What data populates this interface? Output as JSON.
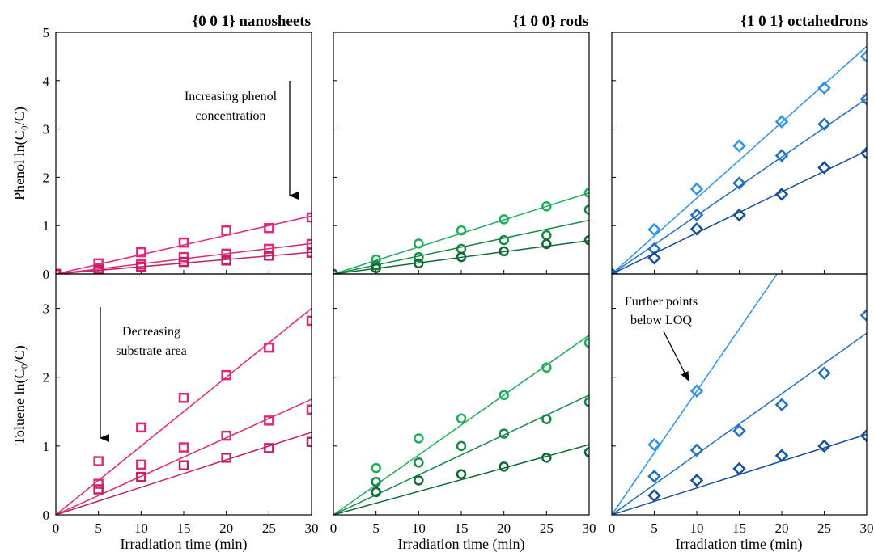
{
  "figure": {
    "ylabels": [
      "Phenol ln(C₀/C)",
      "Toluene ln(C₀/C)"
    ],
    "xlabel": "Irradiation time (min)"
  },
  "chart_data": [
    {
      "type": "scatter",
      "panel": "phenol-nanosheets",
      "title": "{0 0 1} nanosheets",
      "marker": "square",
      "xlabel": "",
      "ylabel": "Phenol ln(C0/C)",
      "xlim": [
        0,
        30
      ],
      "ylim": [
        0,
        5
      ],
      "xticks": [],
      "yticks": [
        0,
        1,
        2,
        3,
        4,
        5
      ],
      "annotations": [
        {
          "text": "Increasing phenol concentration",
          "lines": [
            "Increasing phenol",
            "concentration"
          ],
          "arrow": "down"
        }
      ],
      "series": [
        {
          "color": "#e8247a",
          "x": [
            0,
            5,
            10,
            15,
            20,
            25,
            30
          ],
          "y": [
            0,
            0.22,
            0.45,
            0.65,
            0.9,
            0.95,
            1.17
          ],
          "fit_slope": 0.04
        },
        {
          "color": "#dc2c72",
          "x": [
            0,
            5,
            10,
            15,
            20,
            25,
            30
          ],
          "y": [
            0,
            0.12,
            0.2,
            0.35,
            0.42,
            0.52,
            0.62
          ],
          "fit_slope": 0.021
        },
        {
          "color": "#c71f63",
          "x": [
            0,
            5,
            10,
            15,
            20,
            25,
            30
          ],
          "y": [
            0,
            0.08,
            0.15,
            0.25,
            0.28,
            0.38,
            0.44
          ],
          "fit_slope": 0.015
        }
      ]
    },
    {
      "type": "scatter",
      "panel": "phenol-rods",
      "title": "{1 0 0} rods",
      "marker": "circle",
      "xlabel": "",
      "ylabel": "",
      "xlim": [
        0,
        30
      ],
      "ylim": [
        0,
        5
      ],
      "xticks": [],
      "yticks": [],
      "series": [
        {
          "color": "#1fae5a",
          "x": [
            0,
            5,
            10,
            15,
            20,
            25,
            30
          ],
          "y": [
            0,
            0.3,
            0.63,
            0.9,
            1.13,
            1.4,
            1.68
          ],
          "fit_slope": 0.056
        },
        {
          "color": "#178a46",
          "x": [
            0,
            5,
            10,
            15,
            20,
            25,
            30
          ],
          "y": [
            0,
            0.18,
            0.35,
            0.52,
            0.7,
            0.8,
            1.33
          ],
          "fit_slope": 0.037
        },
        {
          "color": "#0e6b33",
          "x": [
            0,
            5,
            10,
            15,
            20,
            25,
            30
          ],
          "y": [
            0,
            0.12,
            0.22,
            0.35,
            0.47,
            0.62,
            0.7
          ],
          "fit_slope": 0.023
        }
      ]
    },
    {
      "type": "scatter",
      "panel": "phenol-octahedrons",
      "title": "{1 0 1} octahedrons",
      "marker": "diamond",
      "xlabel": "",
      "ylabel": "",
      "xlim": [
        0,
        30
      ],
      "ylim": [
        0,
        5
      ],
      "xticks": [],
      "yticks": [],
      "series": [
        {
          "color": "#2e95ea",
          "x": [
            0,
            5,
            10,
            15,
            20,
            25,
            30
          ],
          "y": [
            0,
            0.92,
            1.76,
            2.65,
            3.15,
            3.85,
            4.5
          ],
          "fit_slope": 0.157
        },
        {
          "color": "#1f6fc4",
          "x": [
            0,
            5,
            10,
            15,
            20,
            25,
            30
          ],
          "y": [
            0,
            0.52,
            1.22,
            1.88,
            2.45,
            3.1,
            3.62
          ],
          "fit_slope": 0.121
        },
        {
          "color": "#16509c",
          "x": [
            0,
            5,
            10,
            15,
            20,
            25,
            30
          ],
          "y": [
            0,
            0.33,
            0.93,
            1.22,
            1.65,
            2.2,
            2.5
          ],
          "fit_slope": 0.085
        }
      ]
    },
    {
      "type": "scatter",
      "panel": "toluene-nanosheets",
      "title": "",
      "marker": "square",
      "xlabel": "Irradiation time (min)",
      "ylabel": "Toluene ln(C0/C)",
      "xlim": [
        0,
        30
      ],
      "ylim": [
        0,
        3.5
      ],
      "xticks": [
        0,
        5,
        10,
        15,
        20,
        25,
        30
      ],
      "yticks": [
        0,
        1,
        2,
        3
      ],
      "annotations": [
        {
          "text": "Decreasing substrate area",
          "lines": [
            "Decreasing",
            "substrate area"
          ],
          "arrow": "down"
        }
      ],
      "series": [
        {
          "color": "#e8247a",
          "x": [
            5,
            10,
            15,
            20,
            25,
            30
          ],
          "y": [
            0.78,
            1.27,
            1.7,
            2.03,
            2.43,
            2.82
          ],
          "fit_slope": 0.1
        },
        {
          "color": "#dc2c72",
          "x": [
            5,
            10,
            15,
            20,
            25,
            30
          ],
          "y": [
            0.45,
            0.73,
            0.98,
            1.15,
            1.37,
            1.53
          ],
          "fit_slope": 0.056
        },
        {
          "color": "#c71f63",
          "x": [
            5,
            10,
            15,
            20,
            25,
            30
          ],
          "y": [
            0.37,
            0.55,
            0.72,
            0.83,
            0.97,
            1.06
          ],
          "fit_slope": 0.04
        }
      ]
    },
    {
      "type": "scatter",
      "panel": "toluene-rods",
      "title": "",
      "marker": "circle",
      "xlabel": "Irradiation time (min)",
      "ylabel": "",
      "xlim": [
        0,
        30
      ],
      "ylim": [
        0,
        3.5
      ],
      "xticks": [
        0,
        5,
        10,
        15,
        20,
        25,
        30
      ],
      "yticks": [],
      "series": [
        {
          "color": "#1fae5a",
          "x": [
            5,
            10,
            15,
            20,
            25,
            30
          ],
          "y": [
            0.68,
            1.11,
            1.4,
            1.74,
            2.14,
            2.5
          ],
          "fit_slope": 0.087
        },
        {
          "color": "#178a46",
          "x": [
            5,
            10,
            15,
            20,
            25,
            30
          ],
          "y": [
            0.48,
            0.76,
            1.0,
            1.18,
            1.39,
            1.64
          ],
          "fit_slope": 0.058
        },
        {
          "color": "#0e6b33",
          "x": [
            5,
            10,
            15,
            20,
            25,
            30
          ],
          "y": [
            0.33,
            0.5,
            0.59,
            0.7,
            0.83,
            0.91
          ],
          "fit_slope": 0.034
        }
      ]
    },
    {
      "type": "scatter",
      "panel": "toluene-octahedrons",
      "title": "",
      "marker": "diamond",
      "xlabel": "Irradiation time (min)",
      "ylabel": "",
      "xlim": [
        0,
        30
      ],
      "ylim": [
        0,
        3.5
      ],
      "xticks": [
        0,
        5,
        10,
        15,
        20,
        25,
        30
      ],
      "yticks": [],
      "annotations": [
        {
          "text": "Further points below LOQ",
          "lines": [
            "Further points",
            "below LOQ"
          ],
          "arrow": "down-right"
        }
      ],
      "series": [
        {
          "color": "#2e95ea",
          "x": [
            5,
            10
          ],
          "y": [
            1.02,
            1.8
          ],
          "fit_slope": 0.18
        },
        {
          "color": "#1f6fc4",
          "x": [
            5,
            10,
            15,
            20,
            25,
            30
          ],
          "y": [
            0.56,
            0.94,
            1.22,
            1.6,
            2.06,
            2.9
          ],
          "fit_slope": 0.088
        },
        {
          "color": "#16509c",
          "x": [
            5,
            10,
            15,
            20,
            25,
            30
          ],
          "y": [
            0.28,
            0.5,
            0.67,
            0.86,
            1.0,
            1.15
          ],
          "fit_slope": 0.039
        }
      ]
    }
  ]
}
